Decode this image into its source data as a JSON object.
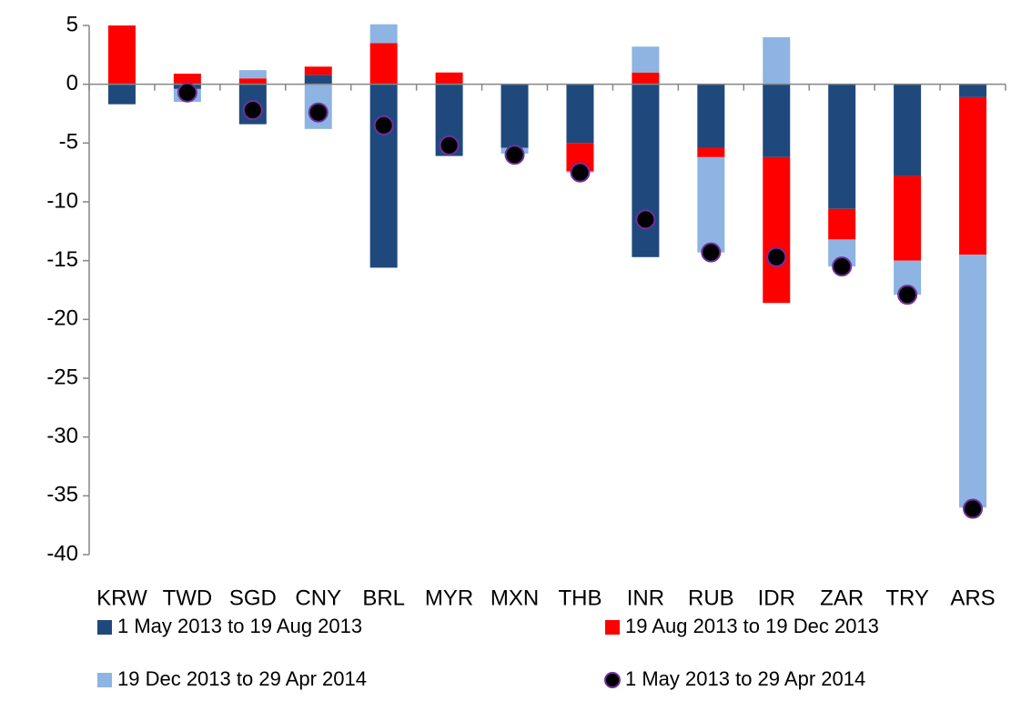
{
  "chart_data": {
    "type": "bar",
    "categories": [
      "KRW",
      "TWD",
      "SGD",
      "CNY",
      "BRL",
      "MYR",
      "MXN",
      "THB",
      "INR",
      "RUB",
      "IDR",
      "ZAR",
      "TRY",
      "ARS"
    ],
    "series": [
      {
        "name": "1 May 2013 to 19 Aug 2013",
        "color": "#1f497d",
        "values": [
          -1.7,
          -0.4,
          -3.4,
          0.8,
          -15.6,
          -6.1,
          -5.4,
          -5.0,
          -14.7,
          -5.4,
          -6.2,
          -10.6,
          -7.8,
          -1.1
        ]
      },
      {
        "name": "19 Aug 2013 to 19 Dec 2013",
        "color": "#ff0000",
        "values": [
          5.0,
          0.9,
          0.5,
          0.7,
          3.5,
          1.0,
          0,
          -2.4,
          1.0,
          -0.8,
          -12.4,
          -2.6,
          -7.2,
          -13.4
        ]
      },
      {
        "name": "19 Dec 2013 to 29 Apr 2014",
        "color": "#8db4e2",
        "values": [
          0,
          -1.1,
          0.7,
          -3.8,
          1.6,
          0,
          -0.5,
          -0.1,
          2.2,
          -8.1,
          4.0,
          -2.3,
          -2.9,
          -21.5
        ]
      },
      {
        "name": "1 May 2013 to 29 Apr 2014",
        "type": "scatter",
        "color": "#000000",
        "values": [
          null,
          -0.7,
          -2.2,
          -2.4,
          -3.5,
          -5.2,
          -6.0,
          -7.5,
          -11.5,
          -14.3,
          -14.7,
          -15.5,
          -17.9,
          -36.1
        ]
      }
    ],
    "ylim": [
      -40,
      5
    ],
    "yticks": [
      -40,
      -35,
      -30,
      -25,
      -20,
      -15,
      -10,
      -5,
      0,
      5
    ]
  }
}
